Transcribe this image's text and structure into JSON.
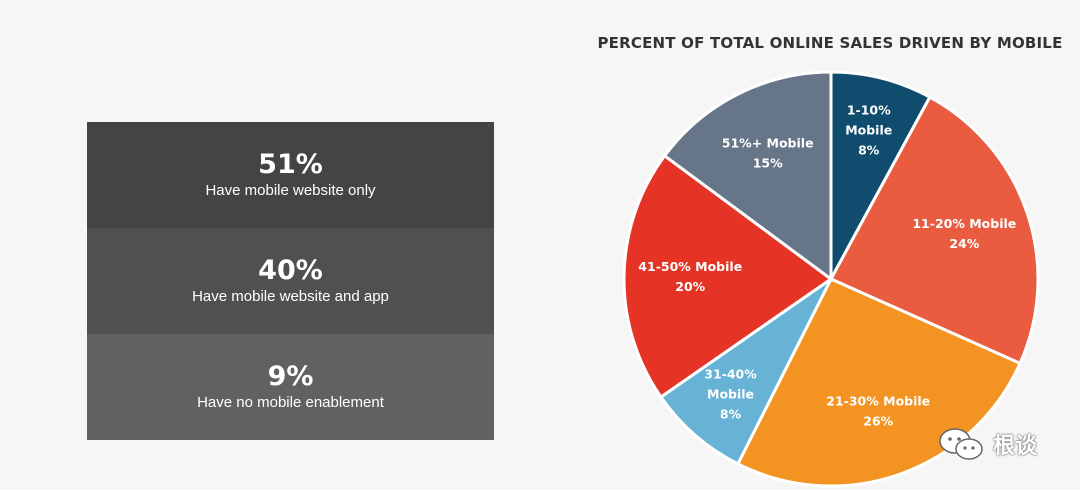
{
  "stats": [
    {
      "percent": "51%",
      "label": "Have mobile website only",
      "color": "#444444"
    },
    {
      "percent": "40%",
      "label": "Have mobile website and app",
      "color": "#505050"
    },
    {
      "percent": "9%",
      "label": "Have no mobile enablement",
      "color": "#616161"
    }
  ],
  "watermark": {
    "text": "根谈"
  },
  "chart_data": {
    "type": "pie",
    "title": "PERCENT OF TOTAL ONLINE SALES DRIVEN BY MOBILE",
    "slices": [
      {
        "label_lines": [
          "1-10%",
          "Mobile",
          "8%"
        ],
        "value": 8,
        "color": "#0f4c6e"
      },
      {
        "label_lines": [
          "11-20% Mobile",
          "24%"
        ],
        "value": 24,
        "color": "#e95c40"
      },
      {
        "label_lines": [
          "21-30% Mobile",
          "26%"
        ],
        "value": 26,
        "color": "#f39322"
      },
      {
        "label_lines": [
          "31-40%",
          "Mobile",
          "8%"
        ],
        "value": 8,
        "color": "#67b3d6"
      },
      {
        "label_lines": [
          "41-50% Mobile",
          "20%"
        ],
        "value": 20,
        "color": "#e53326"
      },
      {
        "label_lines": [
          "51%+ Mobile",
          "15%"
        ],
        "value": 15,
        "color": "#677588"
      }
    ]
  }
}
